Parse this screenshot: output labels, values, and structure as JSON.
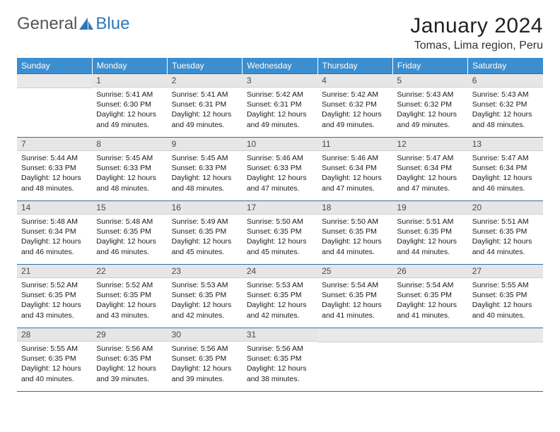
{
  "brand": {
    "part1": "General",
    "part2": "Blue"
  },
  "title": "January 2024",
  "location": "Tomas, Lima region, Peru",
  "day_headers": [
    "Sunday",
    "Monday",
    "Tuesday",
    "Wednesday",
    "Thursday",
    "Friday",
    "Saturday"
  ],
  "colors": {
    "header_bg": "#3b8ecf",
    "header_fg": "#ffffff",
    "daynum_bg": "#e6e6e6",
    "rule": "#2f6fa6",
    "brand_blue": "#2f77bb"
  },
  "first_weekday_offset": 1,
  "days": [
    {
      "n": 1,
      "sunrise": "5:41 AM",
      "sunset": "6:30 PM",
      "daylight": "12 hours and 49 minutes."
    },
    {
      "n": 2,
      "sunrise": "5:41 AM",
      "sunset": "6:31 PM",
      "daylight": "12 hours and 49 minutes."
    },
    {
      "n": 3,
      "sunrise": "5:42 AM",
      "sunset": "6:31 PM",
      "daylight": "12 hours and 49 minutes."
    },
    {
      "n": 4,
      "sunrise": "5:42 AM",
      "sunset": "6:32 PM",
      "daylight": "12 hours and 49 minutes."
    },
    {
      "n": 5,
      "sunrise": "5:43 AM",
      "sunset": "6:32 PM",
      "daylight": "12 hours and 49 minutes."
    },
    {
      "n": 6,
      "sunrise": "5:43 AM",
      "sunset": "6:32 PM",
      "daylight": "12 hours and 48 minutes."
    },
    {
      "n": 7,
      "sunrise": "5:44 AM",
      "sunset": "6:33 PM",
      "daylight": "12 hours and 48 minutes."
    },
    {
      "n": 8,
      "sunrise": "5:45 AM",
      "sunset": "6:33 PM",
      "daylight": "12 hours and 48 minutes."
    },
    {
      "n": 9,
      "sunrise": "5:45 AM",
      "sunset": "6:33 PM",
      "daylight": "12 hours and 48 minutes."
    },
    {
      "n": 10,
      "sunrise": "5:46 AM",
      "sunset": "6:33 PM",
      "daylight": "12 hours and 47 minutes."
    },
    {
      "n": 11,
      "sunrise": "5:46 AM",
      "sunset": "6:34 PM",
      "daylight": "12 hours and 47 minutes."
    },
    {
      "n": 12,
      "sunrise": "5:47 AM",
      "sunset": "6:34 PM",
      "daylight": "12 hours and 47 minutes."
    },
    {
      "n": 13,
      "sunrise": "5:47 AM",
      "sunset": "6:34 PM",
      "daylight": "12 hours and 46 minutes."
    },
    {
      "n": 14,
      "sunrise": "5:48 AM",
      "sunset": "6:34 PM",
      "daylight": "12 hours and 46 minutes."
    },
    {
      "n": 15,
      "sunrise": "5:48 AM",
      "sunset": "6:35 PM",
      "daylight": "12 hours and 46 minutes."
    },
    {
      "n": 16,
      "sunrise": "5:49 AM",
      "sunset": "6:35 PM",
      "daylight": "12 hours and 45 minutes."
    },
    {
      "n": 17,
      "sunrise": "5:50 AM",
      "sunset": "6:35 PM",
      "daylight": "12 hours and 45 minutes."
    },
    {
      "n": 18,
      "sunrise": "5:50 AM",
      "sunset": "6:35 PM",
      "daylight": "12 hours and 44 minutes."
    },
    {
      "n": 19,
      "sunrise": "5:51 AM",
      "sunset": "6:35 PM",
      "daylight": "12 hours and 44 minutes."
    },
    {
      "n": 20,
      "sunrise": "5:51 AM",
      "sunset": "6:35 PM",
      "daylight": "12 hours and 44 minutes."
    },
    {
      "n": 21,
      "sunrise": "5:52 AM",
      "sunset": "6:35 PM",
      "daylight": "12 hours and 43 minutes."
    },
    {
      "n": 22,
      "sunrise": "5:52 AM",
      "sunset": "6:35 PM",
      "daylight": "12 hours and 43 minutes."
    },
    {
      "n": 23,
      "sunrise": "5:53 AM",
      "sunset": "6:35 PM",
      "daylight": "12 hours and 42 minutes."
    },
    {
      "n": 24,
      "sunrise": "5:53 AM",
      "sunset": "6:35 PM",
      "daylight": "12 hours and 42 minutes."
    },
    {
      "n": 25,
      "sunrise": "5:54 AM",
      "sunset": "6:35 PM",
      "daylight": "12 hours and 41 minutes."
    },
    {
      "n": 26,
      "sunrise": "5:54 AM",
      "sunset": "6:35 PM",
      "daylight": "12 hours and 41 minutes."
    },
    {
      "n": 27,
      "sunrise": "5:55 AM",
      "sunset": "6:35 PM",
      "daylight": "12 hours and 40 minutes."
    },
    {
      "n": 28,
      "sunrise": "5:55 AM",
      "sunset": "6:35 PM",
      "daylight": "12 hours and 40 minutes."
    },
    {
      "n": 29,
      "sunrise": "5:56 AM",
      "sunset": "6:35 PM",
      "daylight": "12 hours and 39 minutes."
    },
    {
      "n": 30,
      "sunrise": "5:56 AM",
      "sunset": "6:35 PM",
      "daylight": "12 hours and 39 minutes."
    },
    {
      "n": 31,
      "sunrise": "5:56 AM",
      "sunset": "6:35 PM",
      "daylight": "12 hours and 38 minutes."
    }
  ],
  "labels": {
    "sunrise": "Sunrise:",
    "sunset": "Sunset:",
    "daylight": "Daylight:"
  }
}
